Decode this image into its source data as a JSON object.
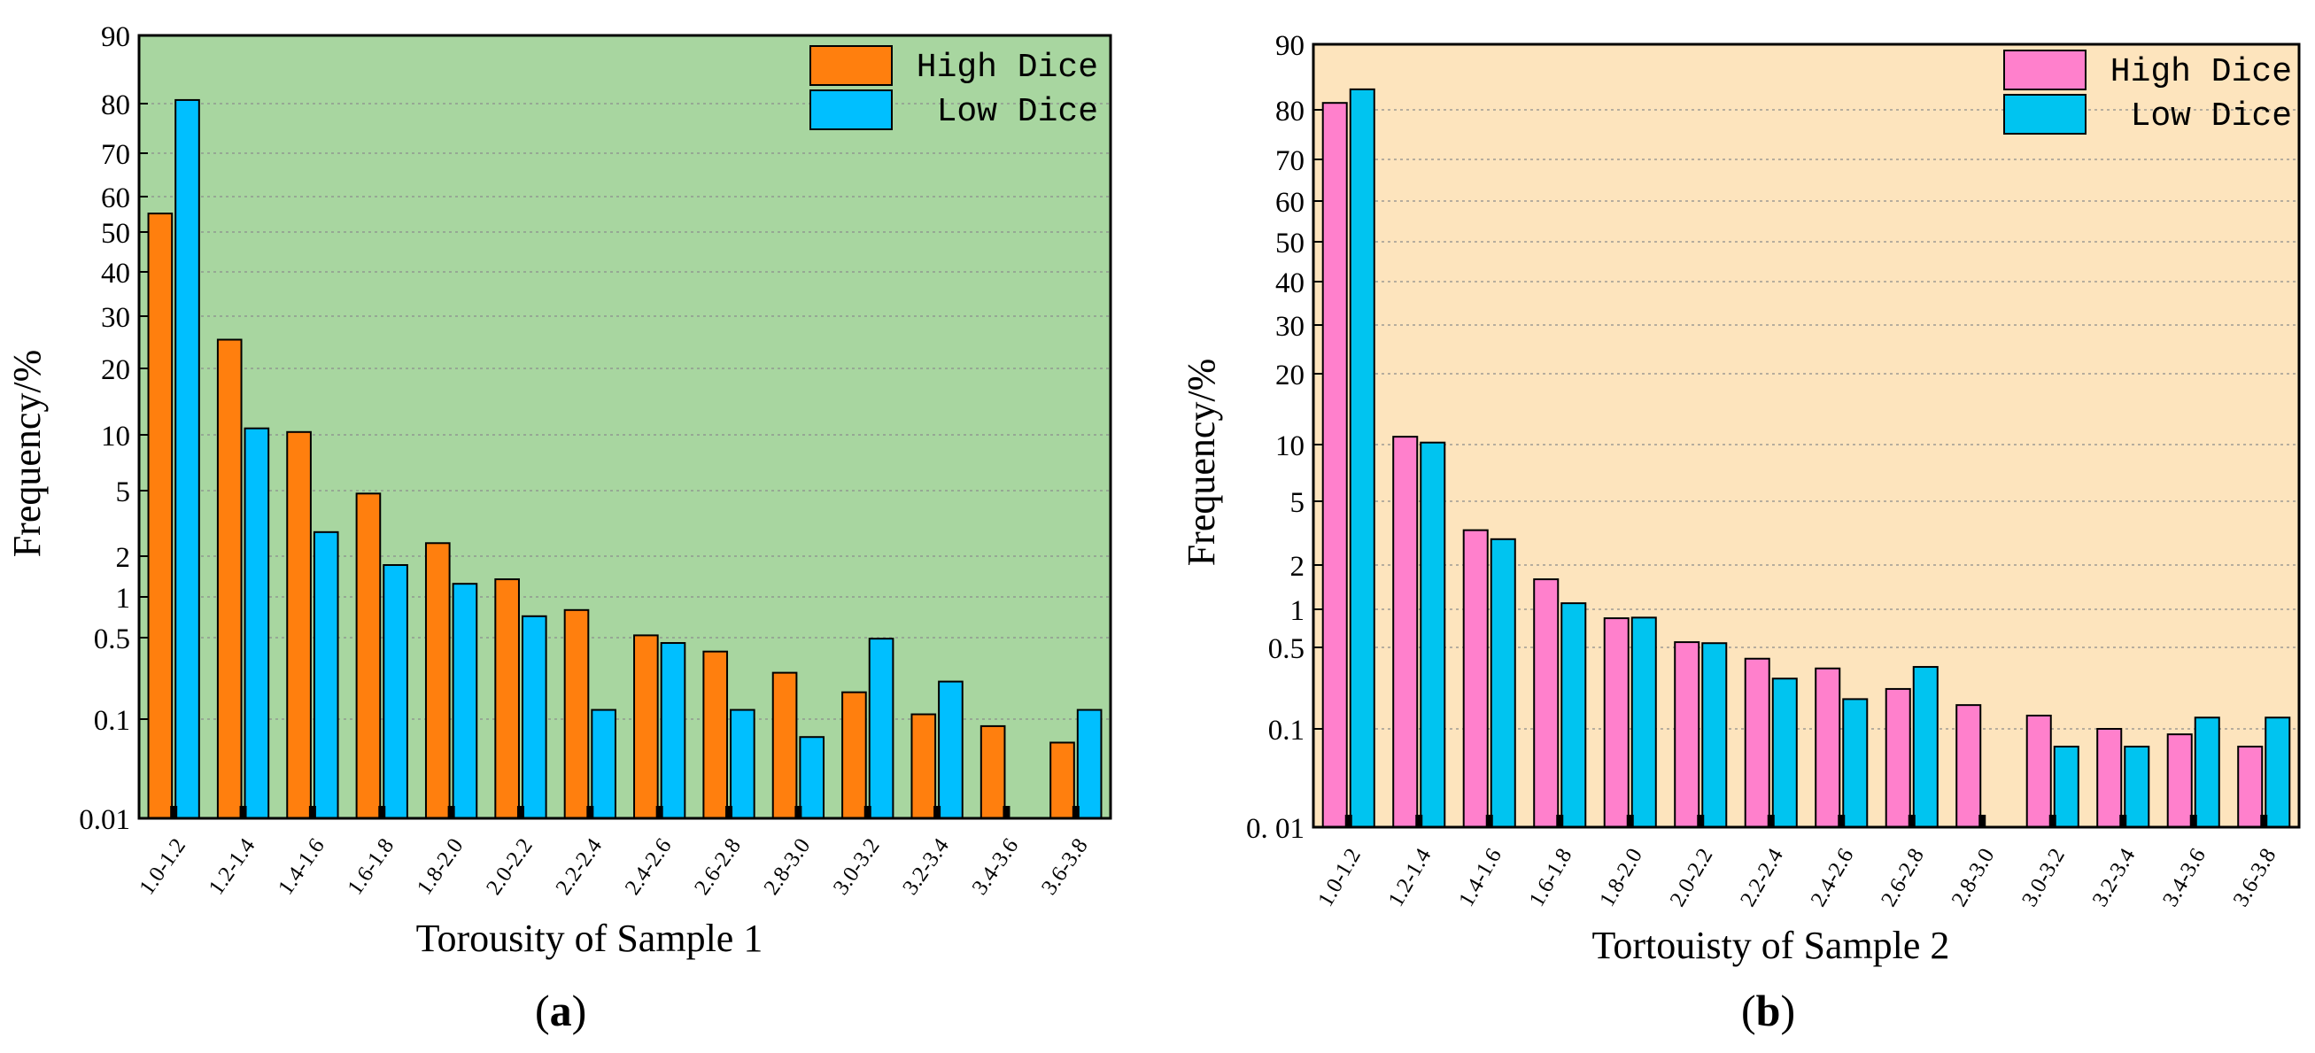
{
  "chart_data": [
    {
      "type": "bar",
      "panel": "(a)",
      "panel_letter": "a",
      "xlabel": "Torousity of Sample 1",
      "ylabel": "Frequency/%",
      "yscale": "broken-log",
      "yticks": [
        "0.01",
        "0.1",
        "0.5",
        "1",
        "2",
        "5",
        "10",
        "20",
        "30",
        "40",
        "50",
        "60",
        "70",
        "80",
        "90"
      ],
      "categories": [
        "1.0-1.2",
        "1.2-1.4",
        "1.4-1.6",
        "1.6-1.8",
        "1.8-2.0",
        "2.0-2.2",
        "2.2-2.4",
        "2.4-2.6",
        "2.6-2.8",
        "2.8-3.0",
        "3.0-3.2",
        "3.2-3.4",
        "3.4-3.6",
        "3.6-3.8"
      ],
      "series": [
        {
          "name": "High Dice",
          "color": "#ff7f0e",
          "values": [
            55,
            25,
            10.3,
            4.8,
            2.4,
            1.35,
            0.8,
            0.52,
            0.38,
            0.25,
            0.17,
            0.11,
            0.085,
            0.058
          ]
        },
        {
          "name": "Low Dice",
          "color": "#00bfff",
          "values": [
            80.5,
            10.7,
            2.8,
            1.72,
            1.25,
            0.72,
            0.12,
            0.45,
            0.12,
            0.066,
            0.49,
            0.21,
            0.0,
            0.12
          ]
        }
      ],
      "legend_position": "top-right",
      "background": "#a8d6a0",
      "grid": true
    },
    {
      "type": "bar",
      "panel": "(b)",
      "panel_letter": "b",
      "xlabel": "Tortouisty of Sample 2",
      "ylabel": "Frequency/%",
      "yscale": "broken-log",
      "yticks": [
        "0. 01",
        "0.1",
        "0.5",
        "1",
        "2",
        "5",
        "10",
        "20",
        "30",
        "40",
        "50",
        "60",
        "70",
        "80",
        "90"
      ],
      "categories": [
        "1.0-1.2",
        "1.2-1.4",
        "1.4-1.6",
        "1.6-1.8",
        "1.8-2.0",
        "2.0-2.2",
        "2.2-2.4",
        "2.4-2.6",
        "2.6-2.8",
        "2.8-3.0",
        "3.0-3.2",
        "3.2-3.4",
        "3.4-3.6",
        "3.6-3.8"
      ],
      "series": [
        {
          "name": "High Dice",
          "color": "#ff80cc",
          "values": [
            81,
            10.8,
            3.3,
            1.6,
            0.85,
            0.55,
            0.4,
            0.33,
            0.22,
            0.16,
            0.13,
            0.1,
            0.088,
            0.066
          ]
        },
        {
          "name": "Low Dice",
          "color": "#00c4f0",
          "values": [
            83,
            10.2,
            2.9,
            1.1,
            0.86,
            0.54,
            0.27,
            0.18,
            0.34,
            0.0,
            0.066,
            0.066,
            0.125,
            0.125
          ]
        }
      ],
      "legend_position": "top-right",
      "background": "#fde4bd",
      "grid": true
    }
  ]
}
